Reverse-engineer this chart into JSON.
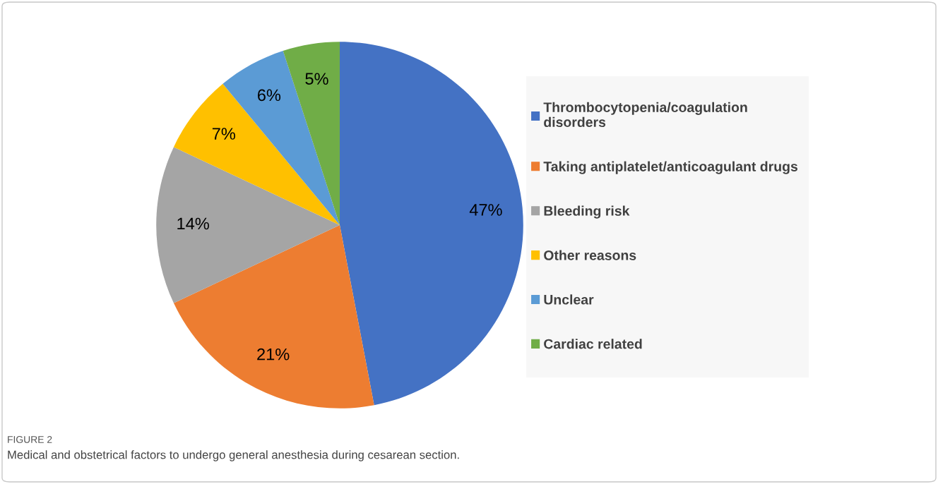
{
  "chart_data": {
    "type": "pie",
    "categories": [
      "Thrombocytopenia/coagulation disorders",
      "Taking antiplatelet/anticoagulant drugs",
      "Bleeding risk",
      "Other reasons",
      "Unclear",
      "Cardiac related"
    ],
    "values": [
      47,
      21,
      14,
      7,
      6,
      5
    ],
    "colors": [
      "#4472c4",
      "#ed7d31",
      "#a5a5a5",
      "#ffc000",
      "#5b9bd5",
      "#70ad47"
    ],
    "value_labels": [
      "47%",
      "21%",
      "14%",
      "7%",
      "6%",
      "5%"
    ],
    "legend": "right",
    "annotations": [
      "FIGURE 2",
      "Medical and obstetrical factors to undergo general anesthesia during cesarean section."
    ]
  }
}
